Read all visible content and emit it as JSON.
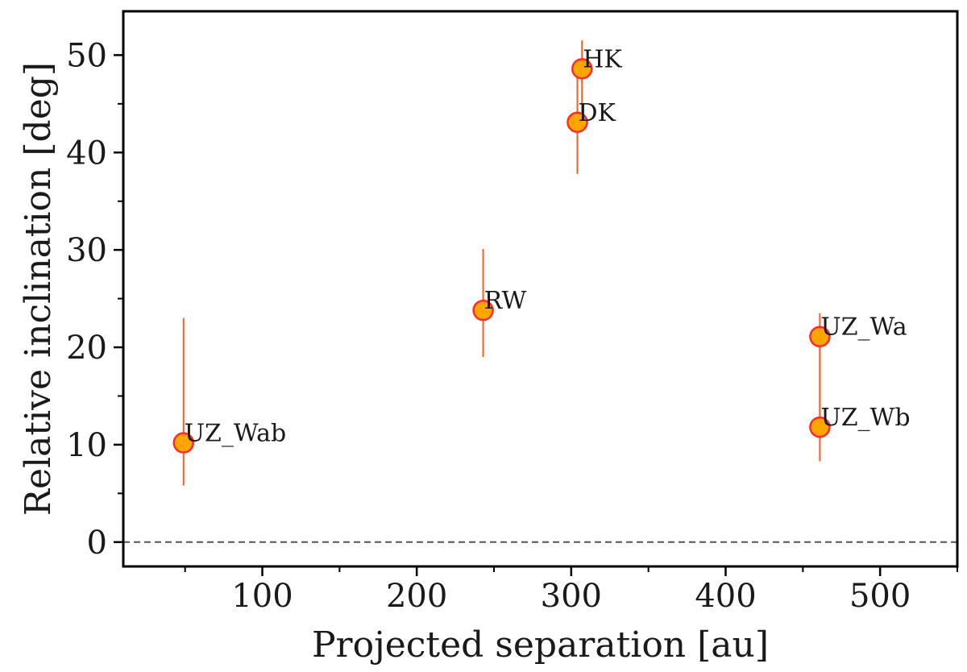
{
  "chart_data": {
    "type": "scatter",
    "title": "",
    "xlabel": "Projected separation [au]",
    "ylabel": "Relative inclination [deg]",
    "xlim": [
      10,
      550
    ],
    "ylim": [
      -2.5,
      54.5
    ],
    "xticks": [
      100,
      200,
      300,
      400,
      500
    ],
    "yticks": [
      0,
      10,
      20,
      30,
      40,
      50
    ],
    "xticks_minor": [
      50,
      150,
      250,
      350,
      450,
      550
    ],
    "yticks_minor": [
      5,
      15,
      25,
      35,
      45
    ],
    "reference_line": {
      "y": 0,
      "style": "dashed"
    },
    "marker_color": "#ffa500",
    "marker_edge_color": "#ff2a2a",
    "errorbar_color": "#ff5a1f",
    "points": [
      {
        "label": "UZ_Wab",
        "x": 49,
        "y": 10.2,
        "yerr_low": 5.8,
        "yerr_high": 23.0
      },
      {
        "label": "RW",
        "x": 243,
        "y": 23.8,
        "yerr_low": 19.0,
        "yerr_high": 30.1
      },
      {
        "label": "DK",
        "x": 304,
        "y": 43.1,
        "yerr_low": 37.8,
        "yerr_high": 48.4
      },
      {
        "label": "HK",
        "x": 307,
        "y": 48.6,
        "yerr_low": 42.8,
        "yerr_high": 51.5
      },
      {
        "label": "UZ_Wa",
        "x": 461,
        "y": 21.1,
        "yerr_low": 11.8,
        "yerr_high": 23.5
      },
      {
        "label": "UZ_Wb",
        "x": 461,
        "y": 11.8,
        "yerr_low": 8.3,
        "yerr_high": 21.0
      }
    ]
  }
}
